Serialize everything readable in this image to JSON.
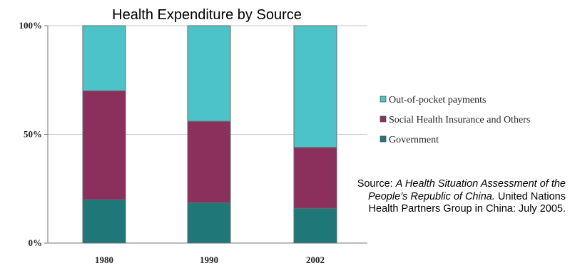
{
  "chart_data": {
    "type": "bar",
    "stacked": true,
    "title": "Health Expenditure by Source",
    "xlabel": "",
    "ylabel": "",
    "categories": [
      "1980",
      "1990",
      "2002"
    ],
    "y_ticks": [
      "0%",
      "50%",
      "100%"
    ],
    "ylim": [
      0,
      100
    ],
    "grid": true,
    "legend_position": "right",
    "series": [
      {
        "name": "Government",
        "values": [
          20,
          18.5,
          16
        ],
        "color": "#1f7778"
      },
      {
        "name": "Social Health Insurance and Others",
        "values": [
          50,
          37.5,
          28
        ],
        "color": "#8b2f5c"
      },
      {
        "name": "Out-of-pocket payments",
        "values": [
          30,
          44,
          56
        ],
        "color": "#4cc3c9"
      }
    ]
  },
  "source": {
    "prefix": "Source: ",
    "title": "A Health Situation Assessment of the People’s Republic of China.",
    "suffix": "  United Nations Health Partners Group in China: July 2005."
  }
}
